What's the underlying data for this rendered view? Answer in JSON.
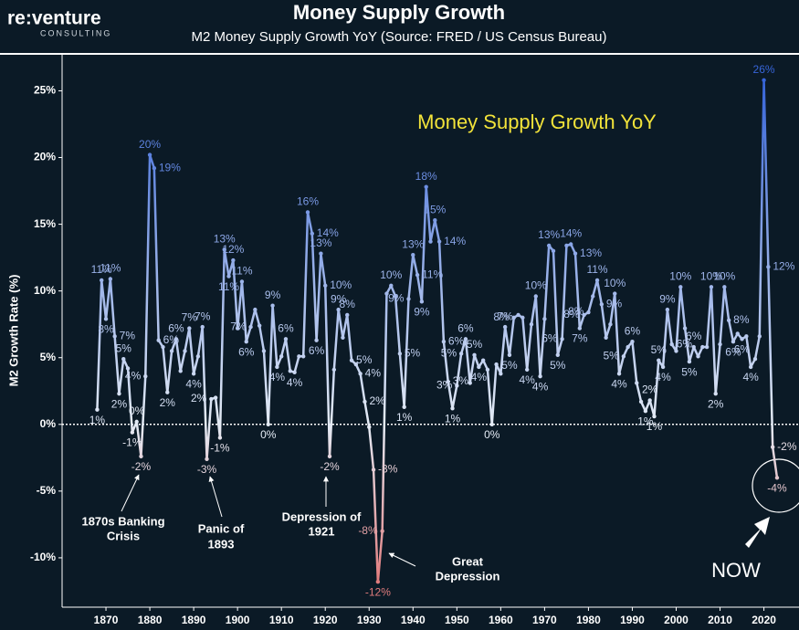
{
  "logo": {
    "name": "re:venture",
    "tagline": "CONSULTING"
  },
  "chart_data": {
    "type": "line",
    "title": "Money Supply Growth",
    "subtitle": "M2 Money Supply Growth YoY  (Source: FRED / US Census Bureau)",
    "annotation": "Money Supply Growth YoY",
    "y_label": "M2 Growth Rate (%)",
    "events": [
      [
        "1870s Banking",
        "Crisis"
      ],
      [
        "Panic of",
        "1893"
      ],
      [
        "Depression of",
        "1921"
      ],
      [
        "Great",
        "Depression"
      ],
      [
        "NOW"
      ]
    ],
    "xlim": [
      1860,
      2028
    ],
    "xticks": [
      1870,
      1880,
      1890,
      1900,
      1910,
      1920,
      1930,
      1940,
      1950,
      1960,
      1970,
      1980,
      1990,
      2000,
      2010,
      2020
    ],
    "ylim": [
      -13.7,
      27.7
    ],
    "yticks": [
      {
        "value": -10,
        "label": "-10%"
      },
      {
        "value": -5,
        "label": "-5%"
      },
      {
        "value": 0,
        "label": "0%"
      },
      {
        "value": 5,
        "label": "5%"
      },
      {
        "value": 10,
        "label": "10%"
      },
      {
        "value": 15,
        "label": "15%"
      },
      {
        "value": 20,
        "label": "20%"
      },
      {
        "value": 25,
        "label": "25%"
      }
    ],
    "zero_line": true,
    "colors": {
      "high": "#2a5bd7",
      "mid": "#e4ebf5",
      "low": "#e06a6a"
    },
    "x": [
      1868,
      1869,
      1870,
      1871,
      1872,
      1873,
      1874,
      1875,
      1876,
      1877,
      1878,
      1879,
      1880,
      1881,
      1882,
      1883,
      1884,
      1885,
      1886,
      1887,
      1888,
      1889,
      1890,
      1891,
      1892,
      1893,
      1894,
      1895,
      1896,
      1897,
      1898,
      1899,
      1900,
      1901,
      1902,
      1903,
      1904,
      1905,
      1906,
      1907,
      1908,
      1909,
      1910,
      1911,
      1912,
      1913,
      1914,
      1915,
      1916,
      1917,
      1918,
      1919,
      1920,
      1921,
      1922,
      1923,
      1924,
      1925,
      1926,
      1927,
      1928,
      1929,
      1930,
      1931,
      1932,
      1933,
      1934,
      1935,
      1936,
      1937,
      1938,
      1939,
      1940,
      1941,
      1942,
      1943,
      1944,
      1945,
      1946,
      1947,
      1948,
      1949,
      1950,
      1951,
      1952,
      1953,
      1954,
      1955,
      1956,
      1957,
      1958,
      1959,
      1960,
      1961,
      1962,
      1963,
      1964,
      1965,
      1966,
      1967,
      1968,
      1969,
      1970,
      1971,
      1972,
      1973,
      1974,
      1975,
      1976,
      1977,
      1978,
      1979,
      1980,
      1981,
      1982,
      1983,
      1984,
      1985,
      1986,
      1987,
      1988,
      1989,
      1990,
      1991,
      1992,
      1993,
      1994,
      1995,
      1996,
      1997,
      1998,
      1999,
      2000,
      2001,
      2002,
      2003,
      2004,
      2005,
      2006,
      2007,
      2008,
      2009,
      2010,
      2011,
      2012,
      2013,
      2014,
      2015,
      2016,
      2017,
      2018,
      2019,
      2020,
      2021,
      2022,
      2023
    ],
    "values": [
      1.1,
      10.8,
      7.9,
      10.9,
      6.6,
      2.3,
      4.9,
      4.2,
      -0.6,
      0.2,
      -2.4,
      3.6,
      20.2,
      19.2,
      6.3,
      5.8,
      2.4,
      5.5,
      6.4,
      4.0,
      5.5,
      7.2,
      3.8,
      5.1,
      7.3,
      -2.6,
      1.9,
      2.0,
      -1.0,
      13.1,
      11.1,
      12.3,
      7.2,
      10.7,
      6.2,
      7.3,
      8.6,
      7.4,
      5.5,
      0.0,
      8.9,
      4.3,
      5.1,
      6.4,
      4.0,
      3.9,
      5.1,
      5.1,
      15.9,
      14.3,
      6.3,
      12.8,
      10.4,
      -2.4,
      4.1,
      8.6,
      6.5,
      8.2,
      4.8,
      4.5,
      3.8,
      1.7,
      -0.2,
      -3.4,
      -11.8,
      -8.0,
      9.8,
      10.4,
      9.6,
      5.3,
      1.3,
      9.4,
      12.7,
      11.2,
      9.2,
      17.8,
      13.7,
      15.3,
      13.7,
      6.2,
      3.2,
      1.2,
      2.9,
      5.3,
      6.4,
      3.1,
      5.2,
      4.3,
      4.8,
      4.1,
      0.0,
      4.5,
      3.8,
      7.3,
      5.2,
      8.0,
      8.2,
      8.0,
      4.1,
      7.5,
      9.6,
      3.6,
      7.9,
      13.4,
      13.0,
      5.2,
      6.4,
      13.4,
      13.5,
      12.8,
      7.2,
      8.2,
      8.4,
      9.6,
      10.8,
      9.0,
      6.5,
      7.5,
      9.8,
      3.8,
      5.1,
      5.8,
      6.2,
      3.1,
      1.7,
      1.0,
      1.8,
      0.6,
      4.8,
      4.3,
      8.6,
      6.0,
      5.5,
      10.3,
      7.2,
      4.7,
      5.8,
      5.1,
      5.8,
      5.8,
      10.3,
      2.3,
      6.0,
      10.3,
      7.8,
      6.2,
      6.8,
      6.4,
      6.6,
      4.3,
      4.9,
      6.6,
      25.8,
      11.8,
      -1.7,
      -4.0
    ],
    "value_labels": [
      "1%",
      "11%",
      "8%",
      "11%",
      "7%",
      "2%",
      "5%",
      null,
      "-1%",
      "0%",
      "-2%",
      "4%",
      "20%",
      "19%",
      "6%",
      null,
      "2%",
      null,
      "6%",
      null,
      null,
      "7%",
      "4%",
      null,
      "7%",
      "-3%",
      "2%",
      null,
      "-1%",
      "13%",
      "11%",
      "12%",
      null,
      "11%",
      "6%",
      "7%",
      null,
      null,
      null,
      "0%",
      "9%",
      "4%",
      null,
      "6%",
      null,
      "4%",
      null,
      null,
      "16%",
      "14%",
      "6%",
      "13%",
      "10%",
      "-2%",
      null,
      "9%",
      null,
      "8%",
      "5%",
      null,
      "4%",
      "2%",
      null,
      "-3%",
      "-12%",
      "-8%",
      null,
      "10%",
      null,
      "5%",
      "1%",
      "9%",
      "13%",
      "11%",
      "9%",
      "18%",
      null,
      "15%",
      "14%",
      "6%",
      "3%",
      "1%",
      "3%",
      "5%",
      "6%",
      null,
      "5%",
      "4%",
      null,
      null,
      "0%",
      null,
      null,
      "7%",
      "5%",
      "8%",
      null,
      null,
      "4%",
      null,
      "10%",
      "4%",
      null,
      "13%",
      null,
      "5%",
      "6%",
      null,
      "14%",
      "13%",
      "7%",
      "8%",
      "8%",
      null,
      "11%",
      "9%",
      null,
      null,
      "10%",
      "4%",
      "5%",
      null,
      "6%",
      null,
      null,
      "1%",
      "2%",
      "1%",
      "5%",
      "4%",
      "9%",
      "6%",
      null,
      "10%",
      null,
      "5%",
      "6%",
      null,
      null,
      null,
      "10%",
      "2%",
      null,
      "10%",
      "8%",
      "6%",
      null,
      "6%",
      null,
      "4%",
      null,
      null,
      "26%",
      "12%",
      "-2%",
      "-4%"
    ]
  }
}
